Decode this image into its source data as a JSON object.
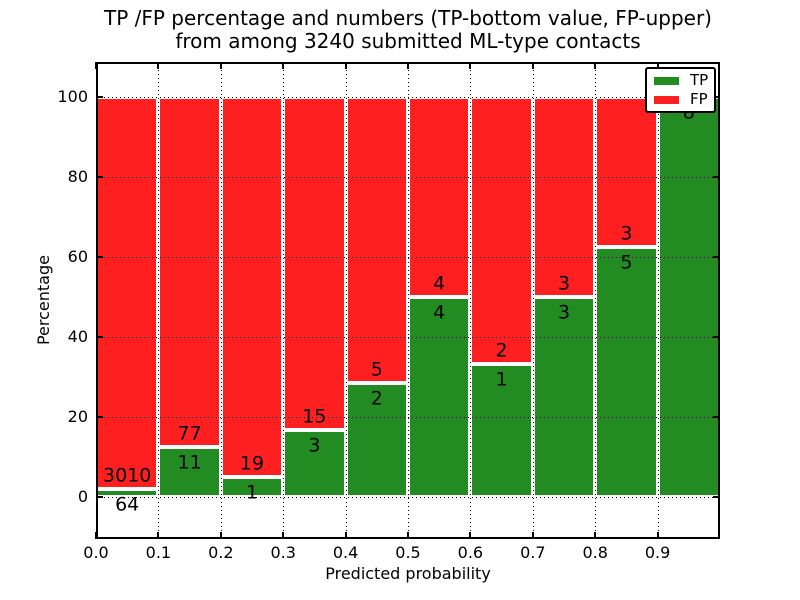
{
  "figure": {
    "title_line1": "TP /FP percentage and numbers (TP-bottom value, FP-upper)",
    "title_line2": "from among 3240 submitted ML-type contacts",
    "xlabel": "Predicted probability",
    "ylabel": "Percentage"
  },
  "chart_data": {
    "type": "bar",
    "stacked": true,
    "normalized": "each bin stacks to 100%",
    "title": "TP /FP percentage and numbers (TP-bottom value, FP-upper) from among 3240 submitted ML-type contacts",
    "xlabel": "Predicted probability",
    "ylabel": "Percentage",
    "total_contacts": 3240,
    "bin_width": 0.1,
    "bin_starts": [
      0.0,
      0.1,
      0.2,
      0.3,
      0.4,
      0.5,
      0.6,
      0.7,
      0.8,
      0.9
    ],
    "series": [
      {
        "name": "TP",
        "color": "#228b22",
        "counts": [
          64,
          11,
          1,
          3,
          2,
          4,
          1,
          3,
          5,
          8
        ]
      },
      {
        "name": "FP",
        "color": "#fe2020",
        "counts": [
          3010,
          77,
          19,
          15,
          5,
          4,
          2,
          3,
          3,
          0
        ]
      }
    ],
    "tp_percent_per_bin": [
      2.08,
      12.5,
      5.0,
      16.67,
      28.57,
      50.0,
      33.33,
      50.0,
      62.5,
      100.0
    ],
    "x_tick_labels": [
      "0.0",
      "0.1",
      "0.2",
      "0.3",
      "0.4",
      "0.5",
      "0.6",
      "0.7",
      "0.8",
      "0.9"
    ],
    "y_tick_values": [
      0,
      20,
      40,
      60,
      80,
      100
    ],
    "xlim": [
      0.0,
      1.0
    ],
    "ylim": [
      -10.75,
      108.75
    ],
    "grid": "dotted both axes",
    "bar_edge_color": "#ffffff",
    "legend": {
      "position": "upper right",
      "entries": [
        {
          "label": "TP",
          "color": "#228b22"
        },
        {
          "label": "FP",
          "color": "#fe2020"
        }
      ]
    }
  }
}
